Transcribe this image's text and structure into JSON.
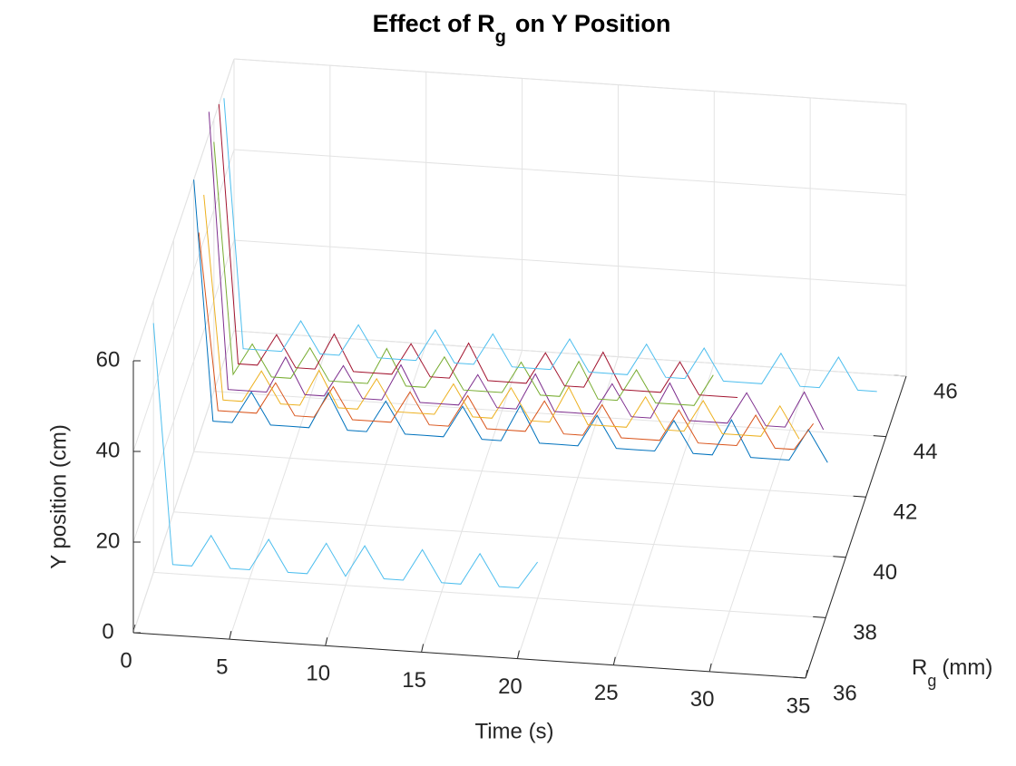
{
  "chart_data": {
    "type": "line3d",
    "title": [
      "Effect of R",
      "g",
      "on  Y Position"
    ],
    "xlabel": "Time (s)",
    "ylabel": [
      "R",
      "g",
      "(mm)"
    ],
    "zlabel": "Y position (cm)",
    "xlim": [
      0,
      35
    ],
    "xticks": [
      0,
      5,
      10,
      15,
      20,
      25,
      30,
      35
    ],
    "ylim": [
      36,
      46
    ],
    "yticks": [
      36,
      38,
      40,
      42,
      44,
      46
    ],
    "zlim": [
      0,
      60
    ],
    "zticks": [
      0,
      20,
      40,
      60
    ],
    "grid": true,
    "x": [
      0,
      1,
      2,
      3,
      4,
      5,
      6,
      7,
      8,
      9,
      10,
      11,
      12,
      13,
      14,
      15,
      16,
      17,
      18,
      19,
      20,
      21,
      22,
      23,
      24,
      25,
      26,
      27,
      28,
      29,
      30,
      31,
      32,
      33,
      34
    ],
    "series": [
      {
        "color": "#4dbeee",
        "y": 38,
        "values": [
          55,
          2,
          2,
          9,
          2,
          2,
          9,
          2,
          2,
          9,
          2,
          9,
          2,
          2,
          9,
          2,
          2,
          9,
          2,
          2,
          8,
          null,
          null,
          null,
          null,
          null,
          null,
          null,
          null,
          null,
          null,
          null,
          null,
          null,
          null
        ]
      },
      {
        "color": "#0072bd",
        "y": 42,
        "values": [
          60,
          7,
          7,
          14,
          7,
          7,
          7,
          15,
          7,
          7,
          14,
          7,
          7,
          7,
          14,
          7,
          7,
          15,
          7,
          7,
          7,
          14,
          7,
          7,
          7,
          14,
          7,
          7,
          15,
          7,
          7,
          7,
          14,
          7,
          null
        ]
      },
      {
        "color": "#d95319",
        "y": 42.5,
        "values": [
          45,
          6,
          6,
          6,
          13,
          6,
          6,
          13,
          6,
          6,
          6,
          13,
          6,
          6,
          13,
          6,
          6,
          6,
          13,
          6,
          6,
          13,
          6,
          6,
          6,
          13,
          6,
          6,
          6,
          13,
          6,
          6,
          12,
          null,
          null
        ]
      },
      {
        "color": "#edb120",
        "y": 43,
        "values": [
          50,
          5,
          5,
          12,
          5,
          5,
          13,
          5,
          5,
          12,
          5,
          5,
          5,
          12,
          5,
          5,
          12,
          5,
          5,
          13,
          5,
          5,
          5,
          12,
          5,
          5,
          12,
          5,
          5,
          5,
          12,
          5,
          null,
          null,
          null
        ]
      },
      {
        "color": "#7e2f8e",
        "y": 43.5,
        "values": [
          65,
          4,
          4,
          4,
          12,
          4,
          4,
          11,
          4,
          4,
          12,
          4,
          4,
          4,
          11,
          4,
          4,
          12,
          4,
          4,
          4,
          11,
          4,
          4,
          12,
          4,
          4,
          4,
          11,
          4,
          4,
          12,
          4,
          null,
          null
        ]
      },
      {
        "color": "#77ac30",
        "y": 44,
        "values": [
          55,
          4,
          11,
          4,
          4,
          11,
          4,
          4,
          4,
          12,
          4,
          4,
          11,
          4,
          4,
          4,
          11,
          4,
          4,
          12,
          4,
          4,
          11,
          4,
          4,
          4,
          11,
          null,
          null,
          null,
          null,
          null,
          null,
          null,
          null
        ]
      },
      {
        "color": "#a2142f",
        "y": 44.5,
        "values": [
          60,
          3,
          3,
          10,
          3,
          3,
          11,
          3,
          3,
          3,
          10,
          3,
          3,
          11,
          3,
          3,
          3,
          10,
          3,
          3,
          11,
          3,
          3,
          3,
          10,
          3,
          3,
          3,
          null,
          null,
          null,
          null,
          null,
          null,
          null
        ]
      },
      {
        "color": "#4dbeee",
        "y": 45,
        "values": [
          58,
          3,
          3,
          3,
          10,
          3,
          3,
          10,
          3,
          3,
          3,
          10,
          3,
          3,
          10,
          3,
          3,
          3,
          10,
          3,
          3,
          3,
          10,
          3,
          3,
          10,
          3,
          3,
          3,
          10,
          3,
          3,
          10,
          3,
          3
        ]
      }
    ]
  }
}
